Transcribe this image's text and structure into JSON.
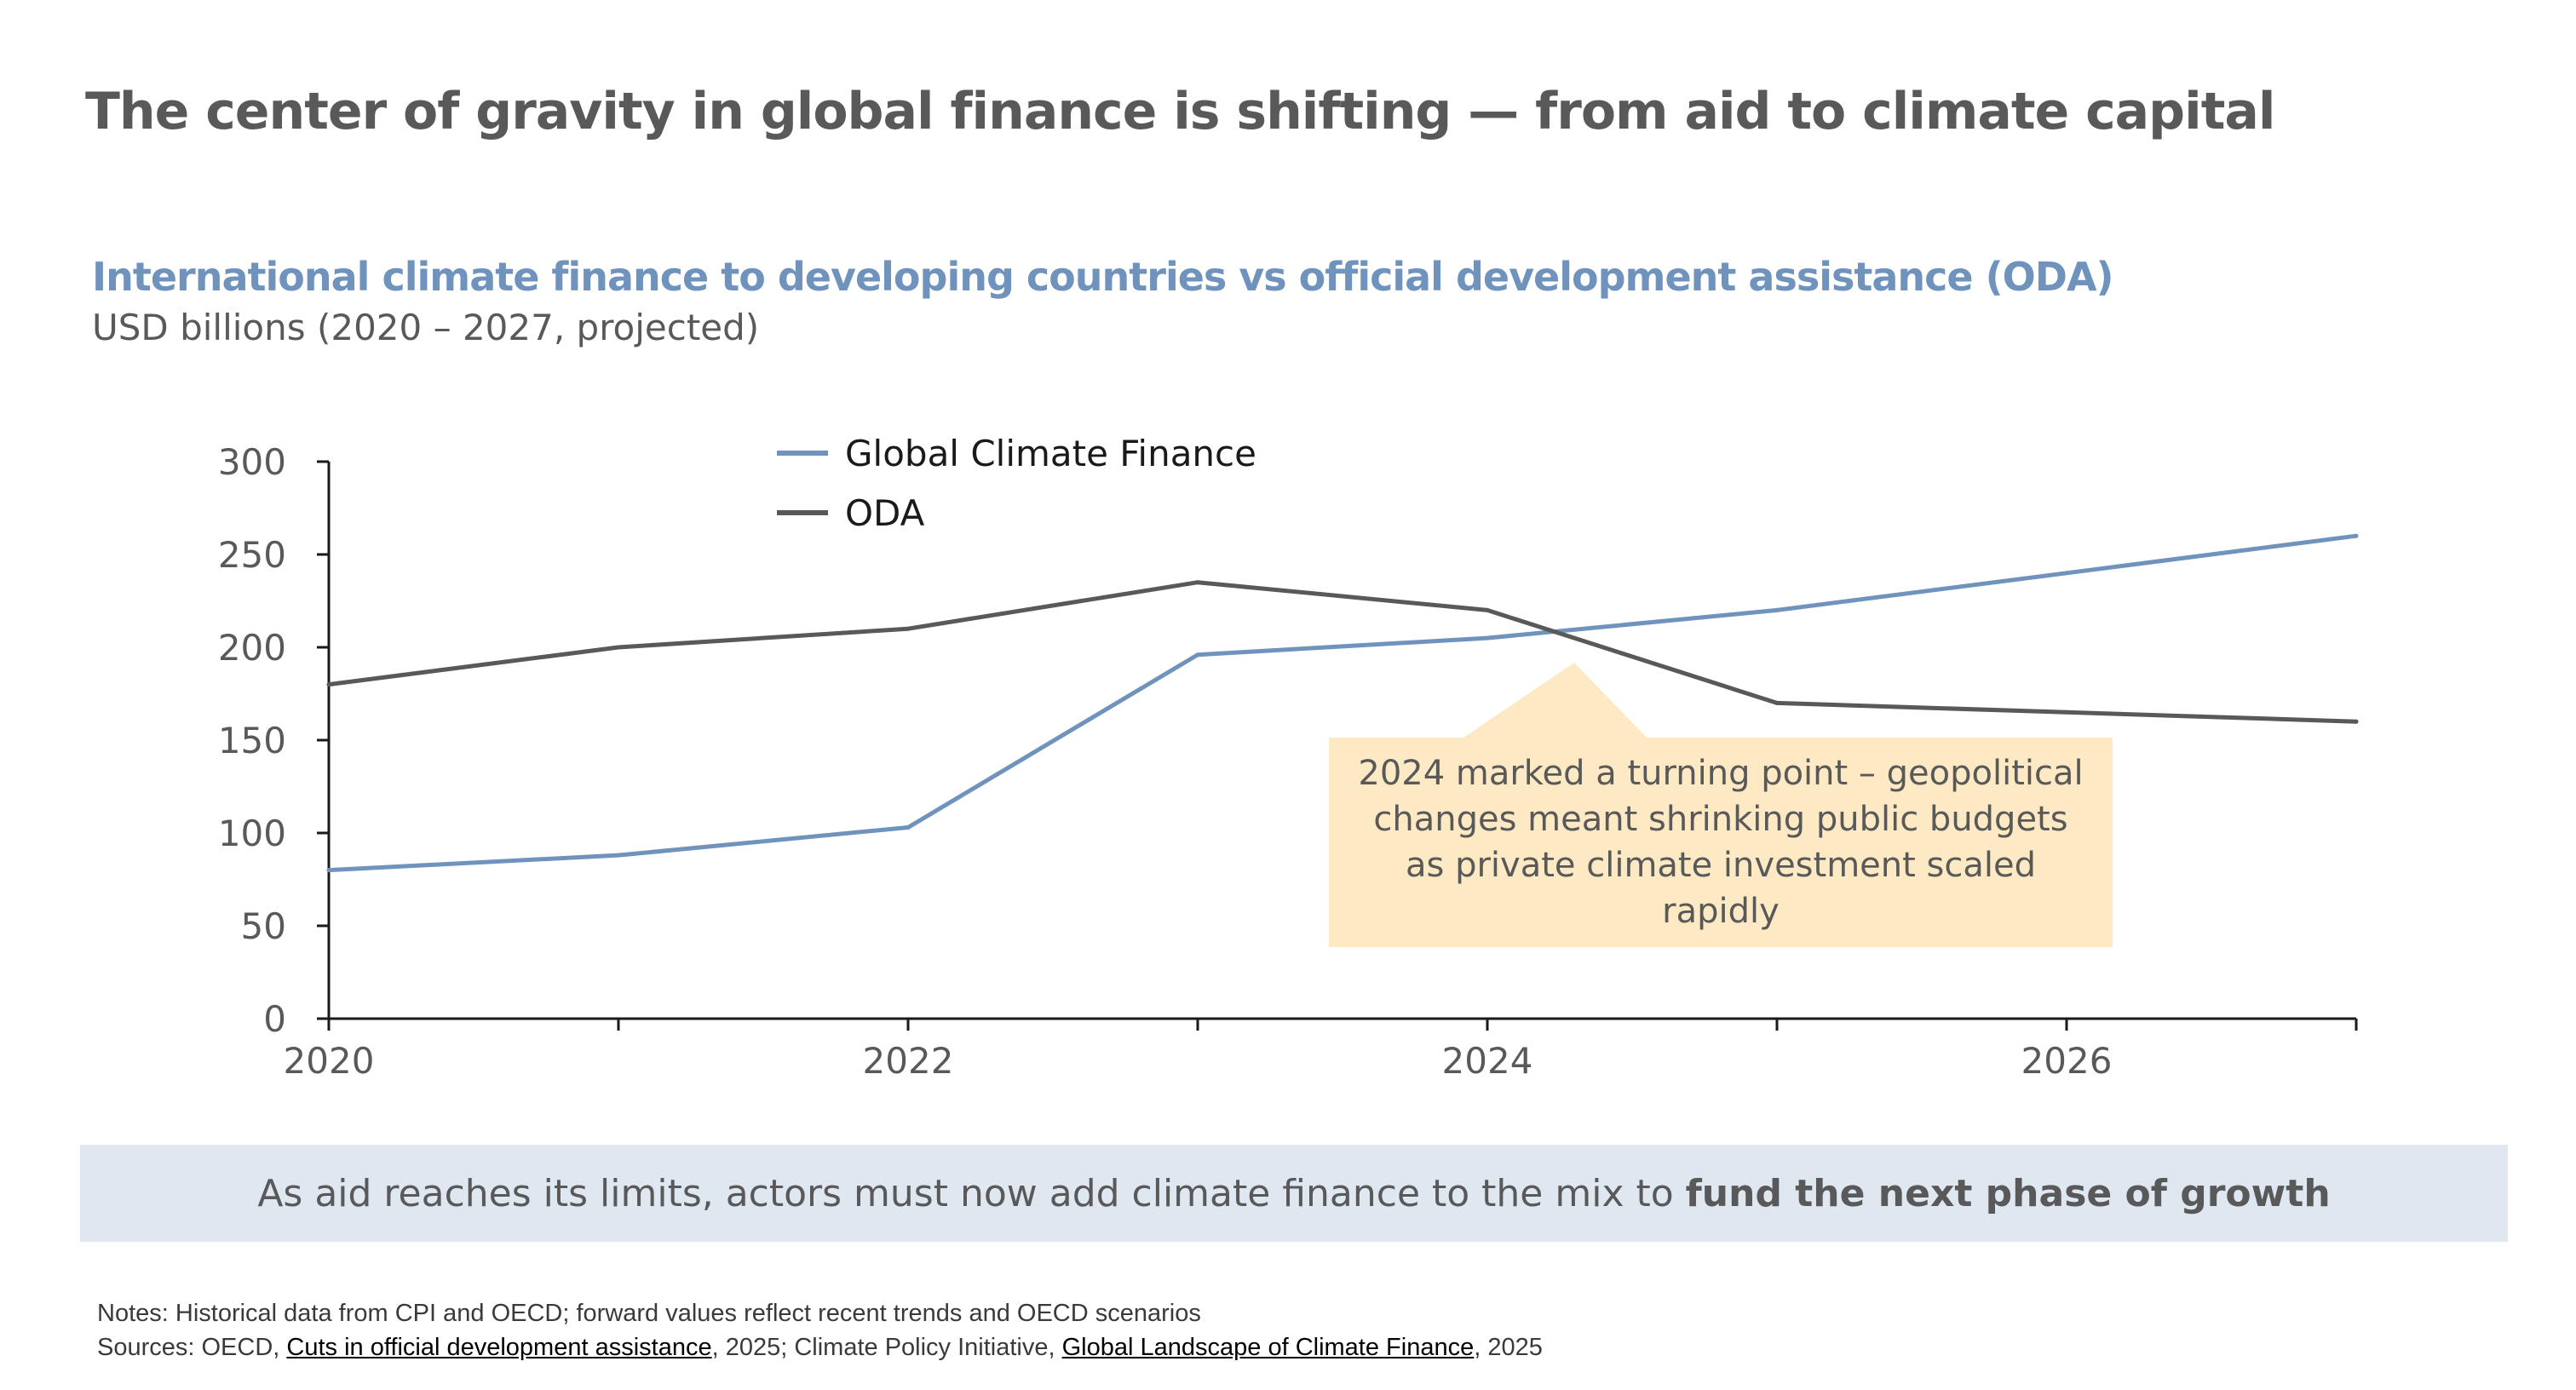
{
  "headline": "The center of gravity in global finance is shifting — from aid to climate capital",
  "chart_data": {
    "type": "line",
    "title": "International climate finance to developing countries vs official development assistance (ODA)",
    "subtitle": "USD billions (2020 – 2027, projected)",
    "xlabel": "",
    "ylabel": "",
    "x": [
      2020,
      2021,
      2022,
      2023,
      2024,
      2025,
      2026,
      2027
    ],
    "x_tick_labels": [
      "2020",
      "2022",
      "2024",
      "2026"
    ],
    "x_tick_values": [
      2020,
      2022,
      2024,
      2026
    ],
    "xlim": [
      2020,
      2027
    ],
    "y_ticks": [
      0,
      50,
      100,
      150,
      200,
      250,
      300
    ],
    "ylim": [
      0,
      300
    ],
    "grid": false,
    "legend_position": "top-center",
    "series": [
      {
        "name": "Global Climate Finance",
        "color": "#6f93bd",
        "values": [
          80,
          88,
          103,
          196,
          205,
          220,
          240,
          260
        ]
      },
      {
        "name": "ODA",
        "color": "#595959",
        "values": [
          180,
          200,
          210,
          235,
          220,
          170,
          165,
          160
        ]
      }
    ],
    "annotation": "2024 marked a turning point – geopolitical changes meant shrinking public budgets as private climate investment scaled rapidly"
  },
  "banner": {
    "text": "As aid reaches its limits, actors must now add climate finance to the mix to",
    "bold": "fund the next phase of growth"
  },
  "notes": {
    "line1": "Notes: Historical data from CPI and OECD; forward values reflect recent trends and OECD scenarios",
    "sources_prefix": "Sources: OECD, ",
    "link1": "Cuts in official development assistance",
    "middle": ", 2025; Climate Policy Initiative, ",
    "link2": "Global Landscape of Climate Finance",
    "suffix": ", 2025"
  },
  "colors": {
    "title_blue": "#6f93bd",
    "text_gray": "#595959",
    "callout_fill": "#fde9c3",
    "banner_fill": "#dfe7f0"
  }
}
